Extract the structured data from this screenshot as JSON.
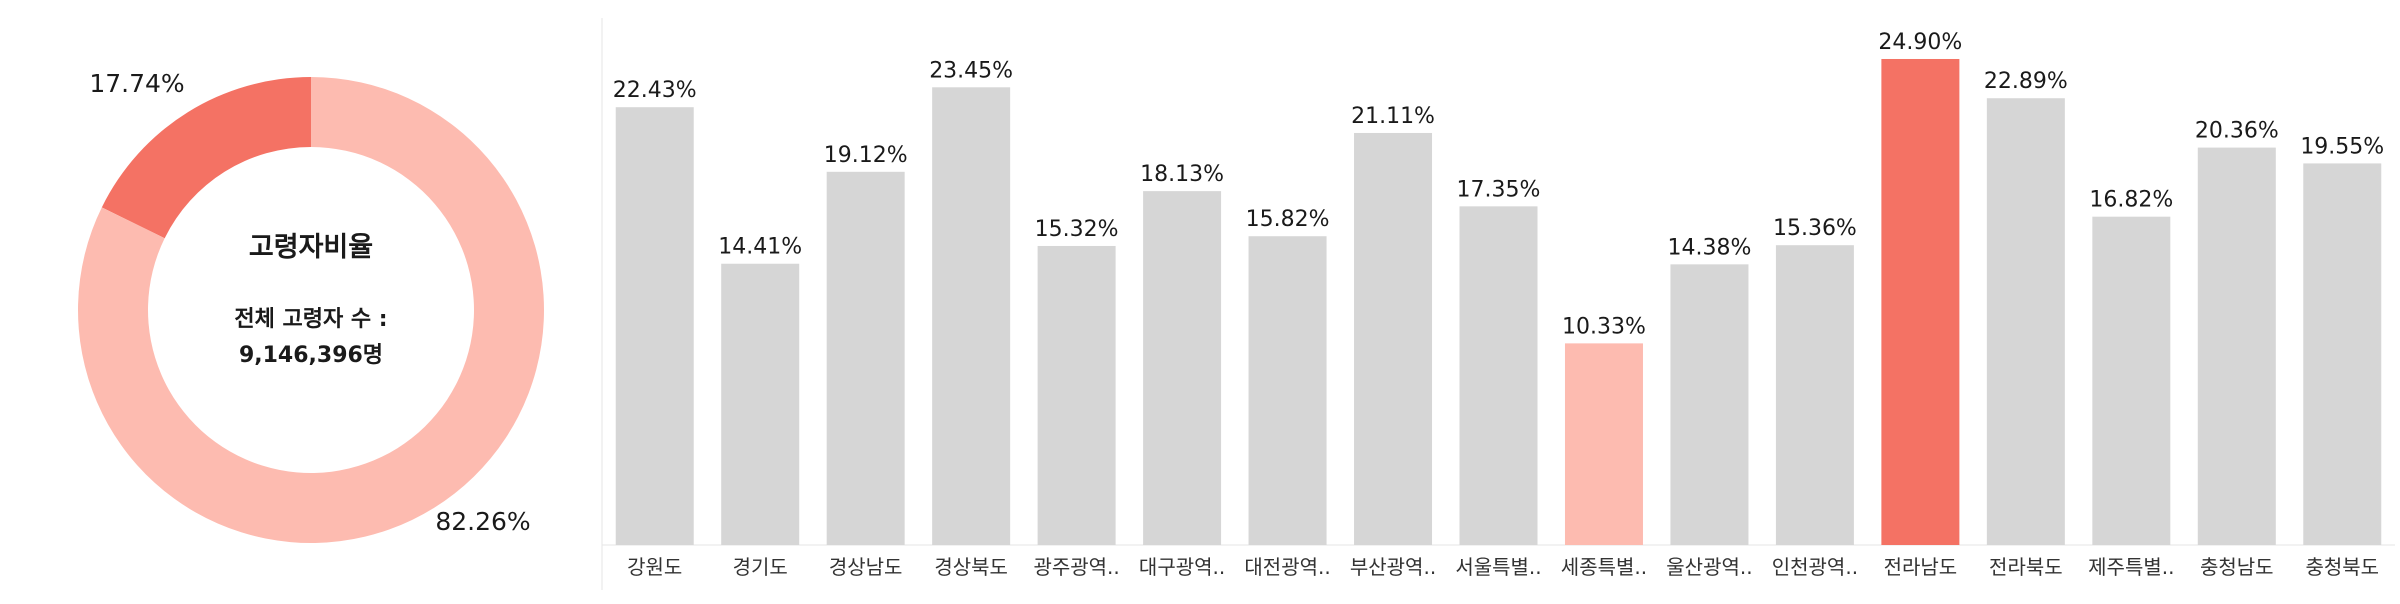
{
  "chart_data": [
    {
      "type": "pie",
      "variant": "donut",
      "center_title": "고령자비율",
      "center_subtitle_line1": "전체 고령자 수 :",
      "center_subtitle_line2": "9,146,396명",
      "slices": [
        {
          "label": "17.74%",
          "value": 17.74,
          "color": "#f47264"
        },
        {
          "label": "82.26%",
          "value": 82.26,
          "color": "#fdbbb0"
        }
      ]
    },
    {
      "type": "bar",
      "categories": [
        "강원도",
        "경기도",
        "경상남도",
        "경상북도",
        "광주광역..",
        "대구광역..",
        "대전광역..",
        "부산광역..",
        "서울특별..",
        "세종특별..",
        "울산광역..",
        "인천광역..",
        "전라남도",
        "전라북도",
        "제주특별..",
        "충청남도",
        "충청북도"
      ],
      "values": [
        22.43,
        14.41,
        19.12,
        23.45,
        15.32,
        18.13,
        15.82,
        21.11,
        17.35,
        10.33,
        14.38,
        15.36,
        24.9,
        22.89,
        16.82,
        20.36,
        19.55
      ],
      "value_labels": [
        "22.43%",
        "14.41%",
        "19.12%",
        "23.45%",
        "15.32%",
        "18.13%",
        "15.82%",
        "21.11%",
        "17.35%",
        "10.33%",
        "14.38%",
        "15.36%",
        "24.90%",
        "22.89%",
        "16.82%",
        "20.36%",
        "19.55%"
      ],
      "ylim": [
        0,
        27.0
      ],
      "colors": {
        "default": "#d6d6d6",
        "max": "#f47264",
        "min": "#fdbbb0",
        "grid": "#e6e6e6"
      },
      "grid": false,
      "legend": "none"
    }
  ]
}
